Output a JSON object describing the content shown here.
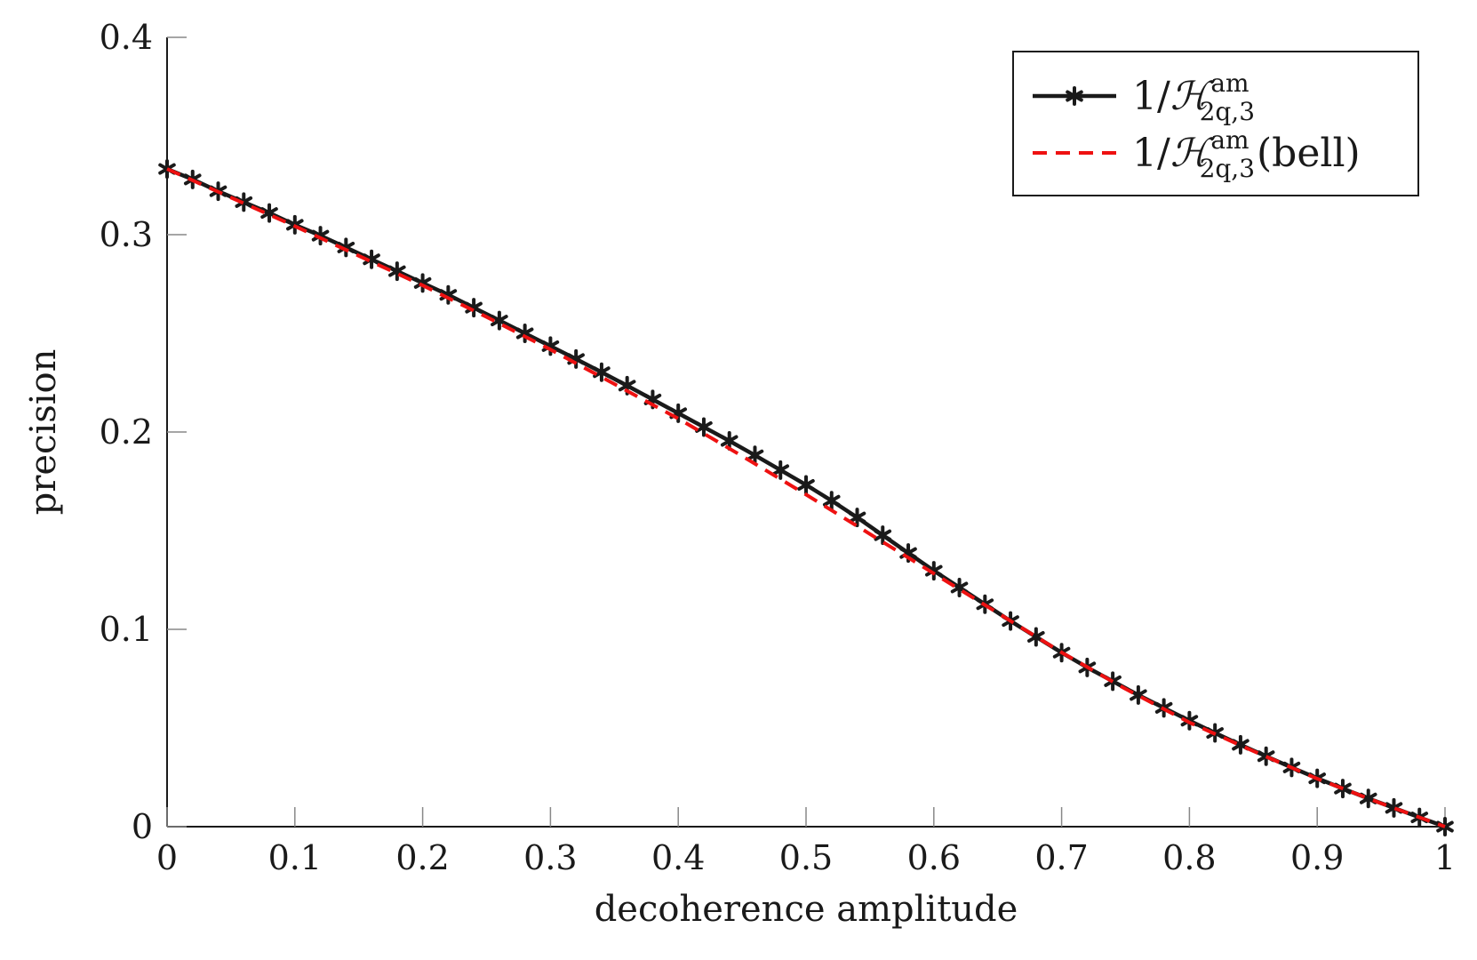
{
  "chart_data": {
    "type": "line",
    "title": "",
    "xlabel": "decoherence amplitude",
    "ylabel": "precision",
    "xlim": [
      0,
      1
    ],
    "ylim": [
      0,
      0.4
    ],
    "x_ticks": [
      "0",
      "0.1",
      "0.2",
      "0.3",
      "0.4",
      "0.5",
      "0.6",
      "0.7",
      "0.8",
      "0.9",
      "1"
    ],
    "y_ticks": [
      "0",
      "0.1",
      "0.2",
      "0.3",
      "0.4"
    ],
    "grid": false,
    "legend_position": "top-right",
    "series": [
      {
        "name": "1/H_{2q,3}^{am}",
        "legend_prefix": "1/",
        "legend_symbol": "ℋ",
        "legend_sup": "am",
        "legend_sub": "2q,3",
        "legend_suffix": "",
        "color": "#1a1a1a",
        "style": "solid",
        "marker": "star",
        "x": [
          0,
          0.02,
          0.04,
          0.06,
          0.08,
          0.1,
          0.12,
          0.14,
          0.16,
          0.18,
          0.2,
          0.22,
          0.24,
          0.26,
          0.28,
          0.3,
          0.32,
          0.34,
          0.36,
          0.38,
          0.4,
          0.42,
          0.44,
          0.46,
          0.48,
          0.5,
          0.52,
          0.54,
          0.56,
          0.58,
          0.6,
          0.62,
          0.64,
          0.66,
          0.68,
          0.7,
          0.72,
          0.74,
          0.76,
          0.78,
          0.8,
          0.82,
          0.84,
          0.86,
          0.88,
          0.9,
          0.92,
          0.94,
          0.96,
          0.98,
          1
        ],
        "y": [
          0.3333,
          0.328,
          0.322,
          0.3165,
          0.311,
          0.305,
          0.2995,
          0.2935,
          0.2875,
          0.2815,
          0.2755,
          0.2695,
          0.263,
          0.2565,
          0.25,
          0.2435,
          0.237,
          0.2303,
          0.2235,
          0.2165,
          0.2095,
          0.2025,
          0.1955,
          0.1882,
          0.1807,
          0.1732,
          0.1652,
          0.1567,
          0.1477,
          0.1387,
          0.1297,
          0.1212,
          0.1127,
          0.1042,
          0.0962,
          0.0882,
          0.0807,
          0.0737,
          0.0667,
          0.0602,
          0.0537,
          0.0475,
          0.0415,
          0.0357,
          0.03,
          0.0245,
          0.0193,
          0.0143,
          0.0095,
          0.0047,
          0
        ]
      },
      {
        "name": "1/H_{2q,3}^{am}(bell)",
        "legend_prefix": "1/",
        "legend_symbol": "ℋ",
        "legend_sup": "am",
        "legend_sub": "2q,3",
        "legend_suffix": "(bell)",
        "color": "#ee1111",
        "style": "dashed",
        "marker": "none",
        "x": [
          0,
          0.05,
          0.1,
          0.15,
          0.2,
          0.25,
          0.3,
          0.35,
          0.4,
          0.45,
          0.5,
          0.55,
          0.6,
          0.65,
          0.7,
          0.75,
          0.8,
          0.85,
          0.9,
          0.95,
          1
        ],
        "y": [
          0.3333,
          0.3188,
          0.3043,
          0.2893,
          0.2743,
          0.2583,
          0.2418,
          0.2243,
          0.2068,
          0.1878,
          0.1683,
          0.1483,
          0.1283,
          0.1083,
          0.0883,
          0.0698,
          0.0528,
          0.0383,
          0.0243,
          0.0118,
          0
        ]
      }
    ]
  }
}
